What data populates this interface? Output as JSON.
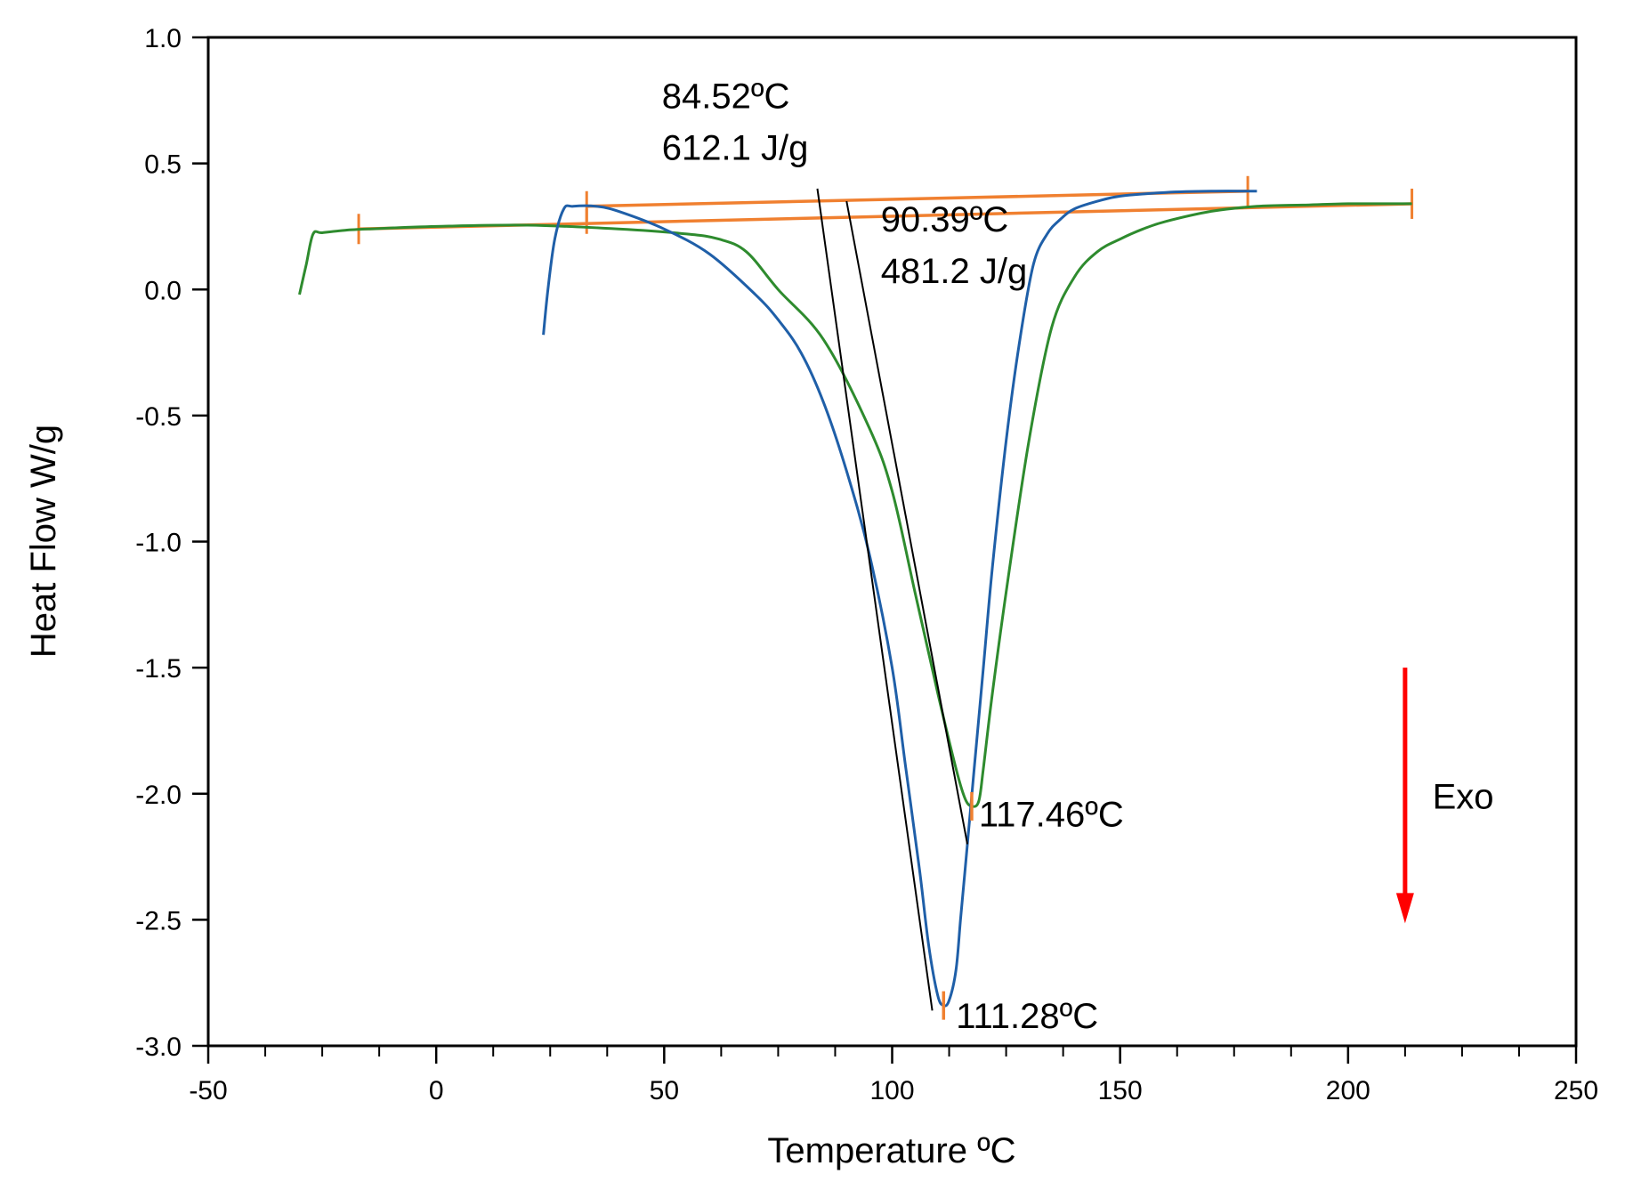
{
  "chart_data": {
    "type": "line",
    "title": "",
    "xlabel": "Temperature ºC",
    "ylabel": "Heat Flow W/g",
    "xlim": [
      -50,
      250
    ],
    "ylim": [
      -3.0,
      1.0
    ],
    "x_ticks": [
      -50,
      0,
      50,
      100,
      150,
      200,
      250
    ],
    "x_tick_labels": [
      "-50",
      "0",
      "50",
      "100",
      "150",
      "200",
      "250"
    ],
    "y_ticks": [
      1.0,
      0.5,
      0.0,
      -0.5,
      -1.0,
      -1.5,
      -2.0,
      -2.5,
      -3.0
    ],
    "y_tick_labels": [
      "1.0",
      "0.5",
      "0.0",
      "-0.5",
      "-1.0",
      "-1.5",
      "-2.0",
      "-2.5",
      "-3.0"
    ],
    "grid": false,
    "series": [
      {
        "name": "green",
        "color": "#2e8b2e",
        "x": [
          -30,
          -28.5,
          -27,
          -25,
          -20,
          -15,
          0,
          20,
          40,
          55,
          62,
          68,
          75,
          85,
          95,
          100,
          105,
          110,
          114,
          116,
          117.5,
          119,
          120,
          122,
          125,
          130,
          135,
          140,
          145,
          150,
          155,
          160,
          170,
          180,
          190,
          200,
          210,
          214
        ],
        "y": [
          -0.02,
          0.1,
          0.22,
          0.225,
          0.235,
          0.24,
          0.25,
          0.255,
          0.24,
          0.22,
          0.2,
          0.15,
          0.0,
          -0.2,
          -0.55,
          -0.8,
          -1.2,
          -1.6,
          -1.9,
          -2.02,
          -2.05,
          -2.03,
          -1.9,
          -1.6,
          -1.2,
          -0.6,
          -0.15,
          0.05,
          0.15,
          0.2,
          0.24,
          0.27,
          0.31,
          0.33,
          0.335,
          0.34,
          0.34,
          0.34
        ]
      },
      {
        "name": "blue",
        "color": "#1f5fa8",
        "x": [
          23.5,
          24.5,
          26,
          28,
          30,
          35,
          40,
          50,
          60,
          70,
          75,
          80,
          85,
          90,
          95,
          100,
          103,
          106,
          108,
          110,
          111.28,
          112.5,
          114,
          115,
          116,
          117,
          118,
          120,
          122,
          125,
          128,
          131,
          134,
          137,
          140,
          145,
          150,
          160,
          170,
          180
        ],
        "y": [
          -0.18,
          0.0,
          0.2,
          0.32,
          0.33,
          0.33,
          0.31,
          0.24,
          0.14,
          -0.02,
          -0.12,
          -0.25,
          -0.45,
          -0.72,
          -1.05,
          -1.5,
          -1.9,
          -2.3,
          -2.6,
          -2.8,
          -2.84,
          -2.82,
          -2.7,
          -2.5,
          -2.3,
          -2.1,
          -1.9,
          -1.5,
          -1.1,
          -0.6,
          -0.2,
          0.1,
          0.22,
          0.28,
          0.32,
          0.35,
          0.37,
          0.385,
          0.39,
          0.39
        ]
      }
    ],
    "baselines": [
      {
        "color": "#f08030",
        "x1": -17,
        "y1": 0.24,
        "x2": 214,
        "y2": 0.34,
        "end_ticks": true
      },
      {
        "color": "#f08030",
        "x1": 33,
        "y1": 0.33,
        "x2": 178,
        "y2": 0.39,
        "end_ticks": true
      },
      {
        "color": "#f08030",
        "x1": 33,
        "y1": 0.27,
        "x2": 33,
        "y2": 0.27,
        "end_ticks": false
      }
    ],
    "tangents": [
      {
        "color": "#000000",
        "x1": 83.6,
        "y1": 0.4,
        "x2": 108.8,
        "y2": -2.86
      },
      {
        "color": "#000000",
        "x1": 90.0,
        "y1": 0.35,
        "x2": 116.5,
        "y2": -2.2
      }
    ],
    "peak_markers": [
      {
        "color": "#f08030",
        "x": 111.28,
        "y": -2.84
      },
      {
        "color": "#f08030",
        "x": 117.46,
        "y": -2.05
      }
    ],
    "annotations": [
      {
        "lines": [
          "84.52ºC",
          "612.1 J/g"
        ],
        "x": 49.5,
        "y": 0.72,
        "line_gap": 0.205
      },
      {
        "lines": [
          "90.39ºC",
          "481.2 J/g"
        ],
        "x": 97.5,
        "y": 0.23,
        "line_gap": 0.205
      },
      {
        "lines": [
          "117.46ºC"
        ],
        "x": 119,
        "y": -2.13
      },
      {
        "lines": [
          "111.28ºC"
        ],
        "x": 114,
        "y": -2.93
      },
      {
        "lines": [
          "Exo"
        ],
        "x": 218.5,
        "y": -2.06
      }
    ],
    "exo_arrow": {
      "color": "#ff0000",
      "x": 212.5,
      "y_from": -1.5,
      "y_to": -2.5
    }
  }
}
